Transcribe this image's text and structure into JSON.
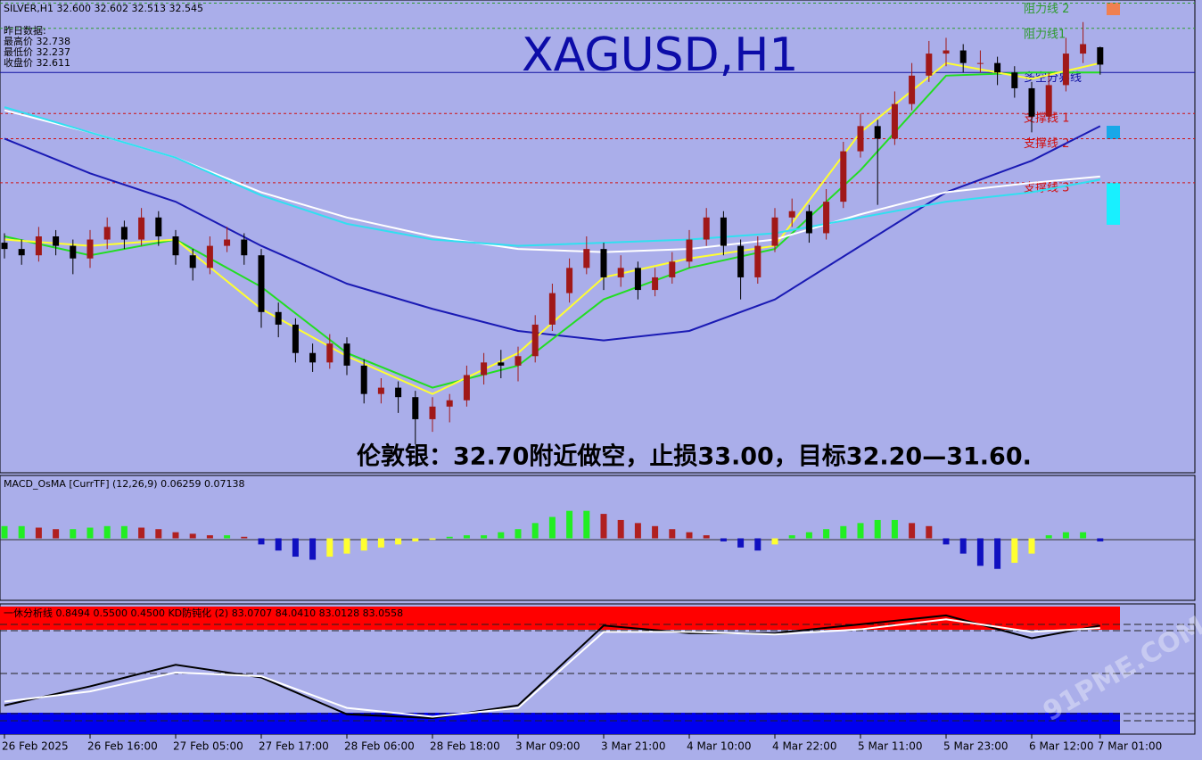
{
  "chart_data": {
    "type": "candlestick",
    "header": "SILVER,H1  32.600 32.602 32.513 32.545",
    "info": [
      "昨日数据:",
      "最高价 32.738",
      "最低价 32.237",
      "收盘价 32.611"
    ],
    "title": "XAGUSD,H1",
    "annotation": "伦敦银：32.70附近做空，止损33.00，目标32.20—31.60.",
    "watermark": "91PME.COM",
    "categories": [
      "26 Feb 2025",
      null,
      null,
      null,
      null,
      "26 Feb 16:00",
      null,
      null,
      null,
      null,
      "27 Feb 05:00",
      null,
      null,
      null,
      null,
      "27 Feb 17:00",
      null,
      null,
      null,
      null,
      "28 Feb 06:00",
      null,
      null,
      null,
      null,
      "28 Feb 18:00",
      null,
      null,
      null,
      null,
      "3 Mar 09:00",
      null,
      null,
      null,
      null,
      "3 Mar 21:00",
      null,
      null,
      null,
      null,
      "4 Mar 10:00",
      null,
      null,
      null,
      null,
      "4 Mar 22:00",
      null,
      null,
      null,
      null,
      "5 Mar 11:00",
      null,
      null,
      null,
      null,
      "5 Mar 23:00",
      null,
      null,
      null,
      null,
      "6 Mar 12:00",
      null,
      null,
      null,
      "7 Mar 01:00"
    ],
    "ohlc": [
      [
        31.98,
        32.01,
        31.93,
        31.96
      ],
      [
        31.96,
        31.99,
        31.91,
        31.94
      ],
      [
        31.94,
        32.03,
        31.92,
        32.0
      ],
      [
        32.0,
        32.02,
        31.94,
        31.97
      ],
      [
        31.97,
        31.99,
        31.88,
        31.93
      ],
      [
        31.93,
        32.02,
        31.9,
        31.99
      ],
      [
        31.99,
        32.06,
        31.96,
        32.03
      ],
      [
        32.03,
        32.05,
        31.96,
        31.99
      ],
      [
        31.99,
        32.09,
        31.97,
        32.06
      ],
      [
        32.06,
        32.08,
        31.97,
        32.0
      ],
      [
        32.0,
        32.02,
        31.91,
        31.94
      ],
      [
        31.94,
        31.96,
        31.86,
        31.9
      ],
      [
        31.9,
        32.0,
        31.88,
        31.97
      ],
      [
        31.97,
        32.03,
        31.95,
        31.99
      ],
      [
        31.99,
        32.01,
        31.91,
        31.94
      ],
      [
        31.94,
        31.96,
        31.71,
        31.76
      ],
      [
        31.76,
        31.79,
        31.68,
        31.72
      ],
      [
        31.72,
        31.74,
        31.6,
        31.63
      ],
      [
        31.63,
        31.66,
        31.57,
        31.6
      ],
      [
        31.6,
        31.69,
        31.58,
        31.66
      ],
      [
        31.66,
        31.68,
        31.56,
        31.59
      ],
      [
        31.59,
        31.61,
        31.47,
        31.5
      ],
      [
        31.5,
        31.55,
        31.47,
        31.52
      ],
      [
        31.52,
        31.54,
        31.44,
        31.49
      ],
      [
        31.49,
        31.51,
        31.34,
        31.42
      ],
      [
        31.42,
        31.49,
        31.38,
        31.46
      ],
      [
        31.46,
        31.5,
        31.41,
        31.48
      ],
      [
        31.48,
        31.59,
        31.46,
        31.56
      ],
      [
        31.56,
        31.63,
        31.53,
        31.6
      ],
      [
        31.6,
        31.64,
        31.55,
        31.59
      ],
      [
        31.59,
        31.65,
        31.54,
        31.62
      ],
      [
        31.62,
        31.75,
        31.6,
        31.72
      ],
      [
        31.72,
        31.85,
        31.7,
        31.82
      ],
      [
        31.82,
        31.93,
        31.79,
        31.9
      ],
      [
        31.9,
        32.0,
        31.88,
        31.96
      ],
      [
        31.96,
        31.98,
        31.83,
        31.87
      ],
      [
        31.87,
        31.94,
        31.84,
        31.9
      ],
      [
        31.9,
        31.92,
        31.8,
        31.83
      ],
      [
        31.83,
        31.9,
        31.81,
        31.87
      ],
      [
        31.87,
        31.95,
        31.85,
        31.92
      ],
      [
        31.92,
        32.02,
        31.9,
        31.99
      ],
      [
        31.99,
        32.09,
        31.97,
        32.06
      ],
      [
        32.06,
        32.08,
        31.94,
        31.97
      ],
      [
        31.97,
        31.99,
        31.8,
        31.87
      ],
      [
        31.87,
        32.0,
        31.85,
        31.97
      ],
      [
        31.97,
        32.09,
        31.95,
        32.06
      ],
      [
        32.06,
        32.12,
        32.03,
        32.08
      ],
      [
        32.08,
        32.1,
        31.98,
        32.01
      ],
      [
        32.01,
        32.15,
        31.99,
        32.11
      ],
      [
        32.11,
        32.3,
        32.09,
        32.27
      ],
      [
        32.27,
        32.39,
        32.25,
        32.35
      ],
      [
        32.35,
        32.37,
        32.1,
        32.31
      ],
      [
        32.31,
        32.46,
        32.29,
        32.42
      ],
      [
        32.42,
        32.55,
        32.4,
        32.51
      ],
      [
        32.51,
        32.62,
        32.49,
        32.58
      ],
      [
        32.58,
        32.63,
        32.54,
        32.59
      ],
      [
        32.59,
        32.61,
        32.52,
        32.55
      ],
      [
        32.55,
        32.59,
        32.52,
        32.55
      ],
      [
        32.55,
        32.57,
        32.48,
        32.52
      ],
      [
        32.52,
        32.54,
        32.44,
        32.47
      ],
      [
        32.47,
        32.49,
        32.33,
        32.38
      ],
      [
        32.38,
        32.52,
        32.36,
        32.48
      ],
      [
        32.48,
        32.63,
        32.46,
        32.58
      ],
      [
        32.58,
        32.68,
        32.55,
        32.61
      ],
      [
        32.6,
        32.602,
        32.513,
        32.545
      ]
    ],
    "up_color": "#a01818",
    "down_color": "#000000",
    "ylim": [
      31.25,
      32.75
    ],
    "lines": [
      {
        "color": "#1a1ab4",
        "x": [
          0,
          5,
          10,
          15,
          20,
          25,
          30,
          35,
          40,
          45,
          50,
          55,
          60,
          64
        ],
        "values": [
          32.31,
          32.2,
          32.11,
          31.97,
          31.85,
          31.77,
          31.7,
          31.67,
          31.7,
          31.8,
          31.97,
          32.14,
          32.24,
          32.35
        ]
      },
      {
        "color": "#22dd22",
        "x": [
          0,
          5,
          10,
          15,
          20,
          25,
          30,
          35,
          40,
          45,
          50,
          55,
          60,
          64
        ],
        "values": [
          32.0,
          31.94,
          31.99,
          31.84,
          31.63,
          31.52,
          31.59,
          31.8,
          31.9,
          31.96,
          32.21,
          32.51,
          32.52,
          32.52
        ]
      },
      {
        "color": "#ffff30",
        "x": [
          0,
          5,
          10,
          15,
          20,
          25,
          30,
          35,
          40,
          45,
          50,
          55,
          60,
          64
        ],
        "values": [
          31.99,
          31.97,
          31.99,
          31.77,
          31.62,
          31.5,
          31.63,
          31.87,
          31.93,
          31.97,
          32.33,
          32.55,
          32.5,
          32.55
        ]
      },
      {
        "color": "#ffffff",
        "x": [
          0,
          5,
          10,
          15,
          20,
          25,
          30,
          35,
          40,
          45,
          50,
          55,
          60,
          64
        ],
        "values": [
          32.4,
          32.33,
          32.25,
          32.14,
          32.06,
          32.0,
          31.96,
          31.95,
          31.96,
          31.99,
          32.07,
          32.14,
          32.17,
          32.19
        ]
      },
      {
        "color": "#30e0f0",
        "x": [
          0,
          5,
          10,
          15,
          20,
          25,
          30,
          35,
          40,
          45,
          50,
          55,
          60,
          64
        ],
        "values": [
          32.41,
          32.33,
          32.25,
          32.13,
          32.04,
          31.99,
          31.97,
          31.98,
          31.99,
          32.01,
          32.06,
          32.11,
          32.14,
          32.18
        ]
      }
    ],
    "levels": [
      {
        "label": "阻力线 2",
        "value": 32.74,
        "color": "#2e9b2e",
        "dash": true
      },
      {
        "label": "阻力线1",
        "value": 32.66,
        "color": "#2e9b2e",
        "dash": true
      },
      {
        "label": "多空分界线",
        "value": 32.52,
        "color": "#1010a0",
        "dash": false
      },
      {
        "label": "支撑线 1",
        "value": 32.39,
        "color": "#d01010",
        "dash": true
      },
      {
        "label": "支撑线 2",
        "value": 32.31,
        "color": "#d01010",
        "dash": true
      },
      {
        "label": "支撑线 3",
        "value": 32.17,
        "color": "#d01010",
        "dash": true
      }
    ],
    "macd": {
      "label": "MACD_OsMA [CurrTF] (12,26,9) 0.06259 0.07138",
      "ylim": [
        -0.2,
        0.2
      ],
      "colors": [
        "#22ee22",
        "#b02020",
        "#1010c0",
        "#ffff30"
      ],
      "values": [
        0.04,
        0.04,
        0.035,
        0.03,
        0.03,
        0.035,
        0.04,
        0.04,
        0.035,
        0.03,
        0.02,
        0.015,
        0.01,
        0.01,
        0.005,
        -0.02,
        -0.04,
        -0.06,
        -0.07,
        -0.06,
        -0.05,
        -0.04,
        -0.03,
        -0.02,
        -0.01,
        -0.005,
        0.005,
        0.01,
        0.01,
        0.02,
        0.03,
        0.05,
        0.07,
        0.09,
        0.09,
        0.08,
        0.06,
        0.05,
        0.04,
        0.03,
        0.02,
        0.01,
        -0.01,
        -0.03,
        -0.04,
        -0.02,
        0.01,
        0.02,
        0.03,
        0.04,
        0.05,
        0.06,
        0.06,
        0.05,
        0.04,
        -0.02,
        -0.05,
        -0.09,
        -0.1,
        -0.08,
        -0.05,
        0.01,
        0.02,
        0.02,
        -0.01
      ]
    },
    "kd": {
      "label": "一休分析线 0.8494 0.5500 0.4500  KD防钝化 (2) 83.0707 84.0410 83.0128 83.0558",
      "ylim": [
        0,
        100
      ],
      "lines": [
        {
          "color": "#000000",
          "x": [
            0,
            5,
            10,
            15,
            20,
            25,
            30,
            35,
            40,
            45,
            50,
            55,
            60,
            64
          ],
          "values": [
            22,
            37,
            54,
            44,
            15,
            12,
            22,
            85,
            79,
            79,
            86,
            93,
            75,
            85
          ]
        },
        {
          "color": "#ffffff",
          "x": [
            0,
            5,
            10,
            15,
            20,
            25,
            30,
            35,
            40,
            45,
            50,
            55,
            60,
            64
          ],
          "values": [
            25,
            33,
            48,
            45,
            20,
            13,
            20,
            80,
            80,
            78,
            82,
            90,
            80,
            83
          ]
        }
      ]
    }
  }
}
